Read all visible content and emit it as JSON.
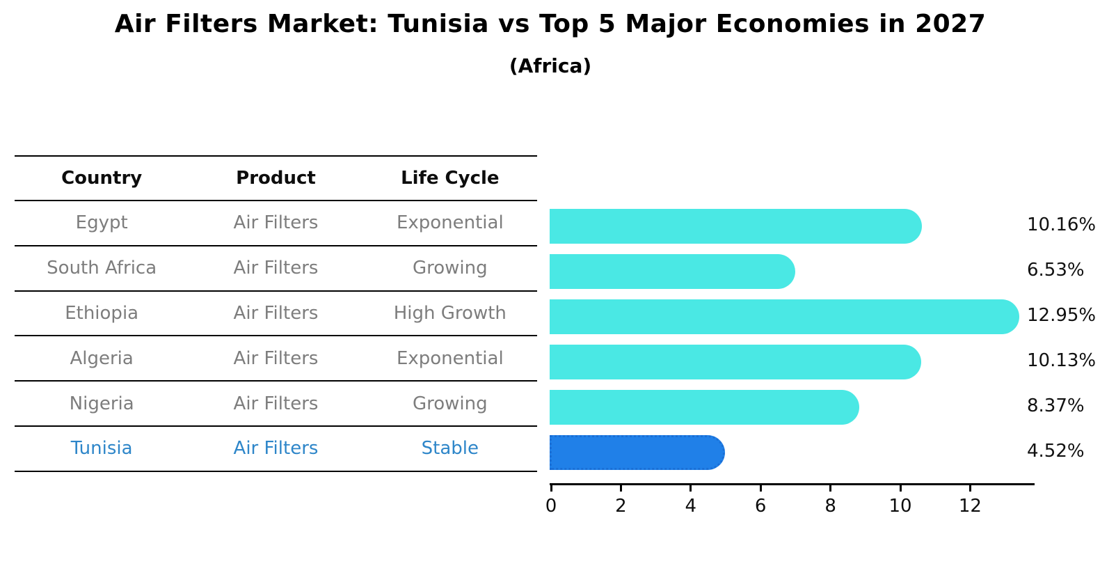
{
  "title": "Air Filters Market: Tunisia vs Top 5 Major Economies in 2027",
  "subtitle": "(Africa)",
  "table": {
    "headers": [
      "Country",
      "Product",
      "Life Cycle"
    ],
    "rows": [
      {
        "country": "Egypt",
        "product": "Air Filters",
        "life_cycle": "Exponential",
        "highlighted": false
      },
      {
        "country": "South Africa",
        "product": "Air Filters",
        "life_cycle": "Growing",
        "highlighted": false
      },
      {
        "country": "Ethiopia",
        "product": "Air Filters",
        "life_cycle": "High Growth",
        "highlighted": false
      },
      {
        "country": "Algeria",
        "product": "Air Filters",
        "life_cycle": "Exponential",
        "highlighted": false
      },
      {
        "country": "Nigeria",
        "product": "Air Filters",
        "life_cycle": "Growing",
        "highlighted": false
      },
      {
        "country": "Tunisia",
        "product": "Air Filters",
        "life_cycle": "Stable",
        "highlighted": true
      }
    ]
  },
  "chart_data": {
    "type": "bar",
    "orientation": "horizontal",
    "title": "Air Filters Market: Tunisia vs Top 5 Major Economies in 2027",
    "subtitle": "(Africa)",
    "categories": [
      "Egypt",
      "South Africa",
      "Ethiopia",
      "Algeria",
      "Nigeria",
      "Tunisia"
    ],
    "values": [
      10.16,
      6.53,
      12.95,
      10.13,
      8.37,
      4.52
    ],
    "value_labels": [
      "10.16%",
      "6.53%",
      "12.95%",
      "10.13%",
      "8.37%",
      "4.52%"
    ],
    "x_ticks": [
      "0",
      "2",
      "4",
      "6",
      "8",
      "10",
      "12"
    ],
    "xlim": [
      0,
      13.6
    ],
    "grid": false,
    "legend": "none",
    "highlight_index": 5,
    "colors": {
      "bar": "#4AE8E4",
      "highlight_bar": "#2080E8",
      "highlight_border": "#1A6FD6",
      "highlight_text": "#2E86C9",
      "row_text": "#7D7D7D",
      "axis": "#000000"
    }
  }
}
